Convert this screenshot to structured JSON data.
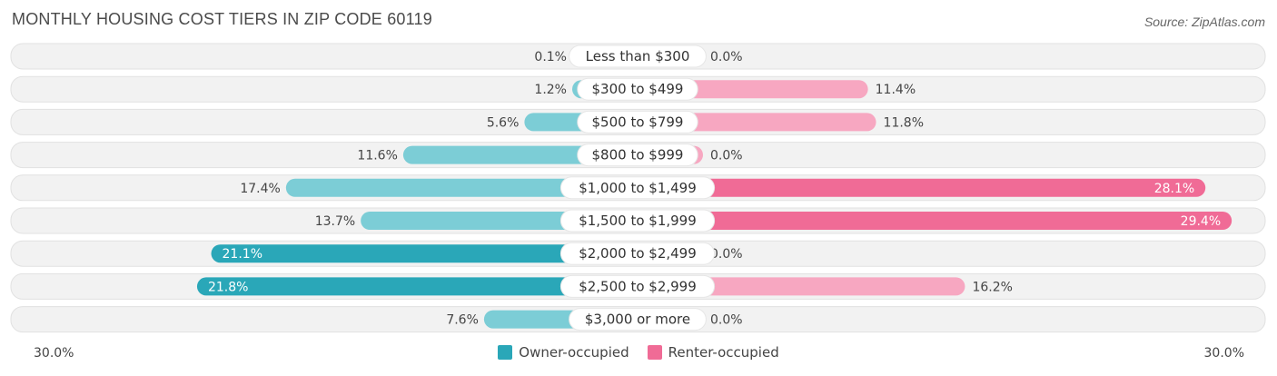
{
  "title": "MONTHLY HOUSING COST TIERS IN ZIP CODE 60119",
  "source": "Source: ZipAtlas.com",
  "colors": {
    "owner": "#2aa7b8",
    "owner_light": "#7ccdd6",
    "renter": "#f06b96",
    "renter_light": "#f7a7c1"
  },
  "chart_data": {
    "type": "bar",
    "orientation": "horizontal-diverging",
    "categories": [
      "Less than $300",
      "$300 to $499",
      "$500 to $799",
      "$800 to $999",
      "$1,000 to $1,499",
      "$1,500 to $1,999",
      "$2,000 to $2,499",
      "$2,500 to $2,999",
      "$3,000 or more"
    ],
    "series": [
      {
        "name": "Owner-occupied",
        "values": [
          0.1,
          1.2,
          5.6,
          11.6,
          17.4,
          13.7,
          21.1,
          21.8,
          7.6
        ],
        "labels": [
          "0.1%",
          "1.2%",
          "5.6%",
          "11.6%",
          "17.4%",
          "13.7%",
          "21.1%",
          "21.8%",
          "7.6%"
        ]
      },
      {
        "name": "Renter-occupied",
        "values": [
          0.0,
          11.4,
          11.8,
          0.0,
          28.1,
          29.4,
          0.0,
          16.2,
          0.0
        ],
        "labels": [
          "0.0%",
          "11.4%",
          "11.8%",
          "0.0%",
          "28.1%",
          "29.4%",
          "0.0%",
          "16.2%",
          "0.0%"
        ]
      }
    ],
    "xlim": [
      -30,
      30
    ],
    "axis_left_label": "30.0%",
    "axis_right_label": "30.0%",
    "legend_position": "bottom-center"
  }
}
